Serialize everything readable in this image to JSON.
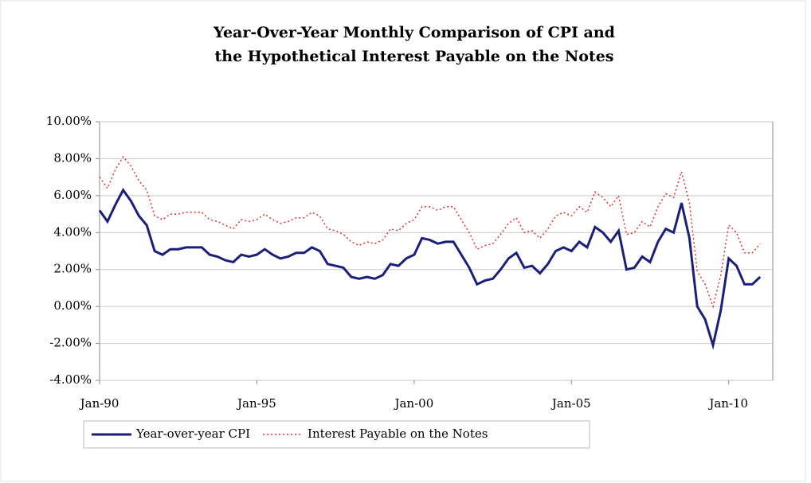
{
  "chart_data": {
    "type": "line",
    "title": [
      "Year-Over-Year Monthly Comparison of CPI and",
      "the Hypothetical Interest Payable on the Notes"
    ],
    "x": [
      1990,
      1990.25,
      1990.5,
      1990.75,
      1991,
      1991.25,
      1991.5,
      1991.75,
      1992,
      1992.25,
      1992.5,
      1992.75,
      1993,
      1993.25,
      1993.5,
      1993.75,
      1994,
      1994.25,
      1994.5,
      1994.75,
      1995,
      1995.25,
      1995.5,
      1995.75,
      1996,
      1996.25,
      1996.5,
      1996.75,
      1997,
      1997.25,
      1997.5,
      1997.75,
      1998,
      1998.25,
      1998.5,
      1998.75,
      1999,
      1999.25,
      1999.5,
      1999.75,
      2000,
      2000.25,
      2000.5,
      2000.75,
      2001,
      2001.25,
      2001.5,
      2001.75,
      2002,
      2002.25,
      2002.5,
      2002.75,
      2003,
      2003.25,
      2003.5,
      2003.75,
      2004,
      2004.25,
      2004.5,
      2004.75,
      2005,
      2005.25,
      2005.5,
      2005.75,
      2006,
      2006.25,
      2006.5,
      2006.75,
      2007,
      2007.25,
      2007.5,
      2007.75,
      2008,
      2008.25,
      2008.5,
      2008.75,
      2009,
      2009.25,
      2009.5,
      2009.75,
      2010,
      2010.25,
      2010.5,
      2010.75,
      2011
    ],
    "series": [
      {
        "name": "Year-over-year CPI",
        "color": "#1a1f7a",
        "style": "solid",
        "values": [
          5.2,
          4.6,
          5.5,
          6.3,
          5.7,
          4.9,
          4.4,
          3.0,
          2.8,
          3.1,
          3.1,
          3.2,
          3.2,
          3.2,
          2.8,
          2.7,
          2.5,
          2.4,
          2.8,
          2.7,
          2.8,
          3.1,
          2.8,
          2.6,
          2.7,
          2.9,
          2.9,
          3.2,
          3.0,
          2.3,
          2.2,
          2.1,
          1.6,
          1.5,
          1.6,
          1.5,
          1.7,
          2.3,
          2.2,
          2.6,
          2.8,
          3.7,
          3.6,
          3.4,
          3.5,
          3.5,
          2.8,
          2.1,
          1.2,
          1.4,
          1.5,
          2.0,
          2.6,
          2.9,
          2.1,
          2.2,
          1.8,
          2.3,
          3.0,
          3.2,
          3.0,
          3.5,
          3.2,
          4.3,
          4.0,
          3.5,
          4.1,
          2.0,
          2.1,
          2.7,
          2.4,
          3.5,
          4.2,
          4.0,
          5.6,
          3.7,
          0.0,
          -0.7,
          -2.1,
          -0.2,
          2.6,
          2.2,
          1.2,
          1.2,
          1.6
        ]
      },
      {
        "name": "Interest Payable on the Notes",
        "color": "#e0302a",
        "style": "dotted",
        "values": [
          7.0,
          6.4,
          7.4,
          8.1,
          7.6,
          6.8,
          6.3,
          4.9,
          4.7,
          5.0,
          5.0,
          5.1,
          5.1,
          5.1,
          4.7,
          4.6,
          4.4,
          4.2,
          4.7,
          4.6,
          4.7,
          5.0,
          4.7,
          4.5,
          4.6,
          4.8,
          4.8,
          5.1,
          4.9,
          4.2,
          4.1,
          3.9,
          3.5,
          3.3,
          3.5,
          3.4,
          3.6,
          4.2,
          4.1,
          4.5,
          4.7,
          5.4,
          5.4,
          5.2,
          5.4,
          5.4,
          4.7,
          4.0,
          3.1,
          3.3,
          3.4,
          3.9,
          4.5,
          4.8,
          4.0,
          4.1,
          3.7,
          4.2,
          4.9,
          5.1,
          4.9,
          5.4,
          5.1,
          6.2,
          5.9,
          5.4,
          6.0,
          3.9,
          4.0,
          4.6,
          4.3,
          5.4,
          6.1,
          5.9,
          7.3,
          5.6,
          1.9,
          1.2,
          0.0,
          1.7,
          4.4,
          4.0,
          2.9,
          2.9,
          3.4
        ]
      }
    ],
    "xlim": [
      1990,
      2011.4
    ],
    "xticks": [
      {
        "value": 1990,
        "label": "Jan-90"
      },
      {
        "value": 1995,
        "label": "Jan-95"
      },
      {
        "value": 2000,
        "label": "Jan-00"
      },
      {
        "value": 2005,
        "label": "Jan-05"
      },
      {
        "value": 2010,
        "label": "Jan-10"
      }
    ],
    "ylim": [
      -4,
      10
    ],
    "yticks": [
      {
        "value": -4,
        "label": "-4.00%"
      },
      {
        "value": -2,
        "label": "-2.00%"
      },
      {
        "value": 0,
        "label": "0.00%"
      },
      {
        "value": 2,
        "label": "2.00%"
      },
      {
        "value": 4,
        "label": "4.00%"
      },
      {
        "value": 6,
        "label": "6.00%"
      },
      {
        "value": 8,
        "label": "8.00%"
      },
      {
        "value": 10,
        "label": "10.00%"
      }
    ],
    "grid": true,
    "legend": "bottom"
  }
}
